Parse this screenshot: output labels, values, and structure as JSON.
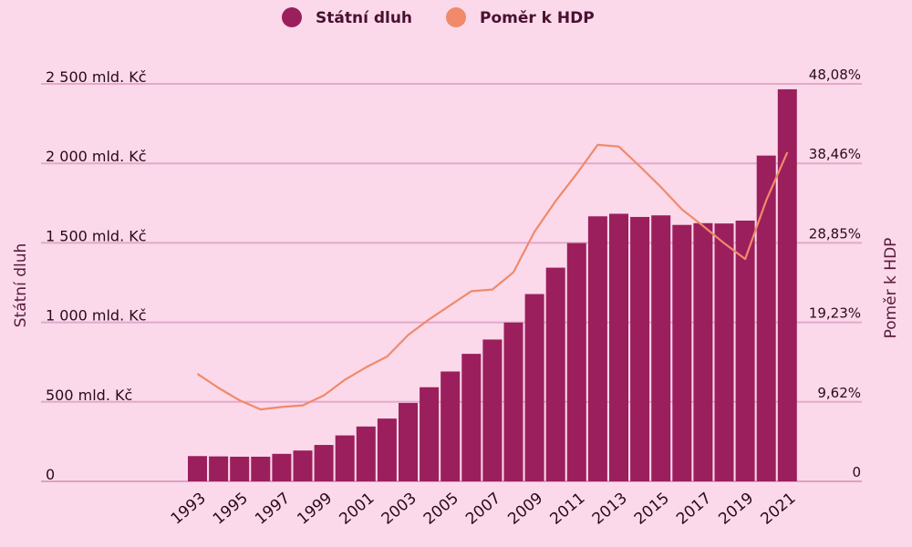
{
  "chart_data": {
    "type": "bar",
    "legend": {
      "placement": "top-center"
    },
    "ylabel": "Státní dluh",
    "y2label": "Poměr k HDP",
    "ylim": [
      0,
      2500
    ],
    "y2lim": [
      0,
      48.08
    ],
    "y_ticks": [
      {
        "value": 0,
        "label": "0"
      },
      {
        "value": 500,
        "label": "500 mld. Kč"
      },
      {
        "value": 1000,
        "label": "1 000 mld. Kč"
      },
      {
        "value": 1500,
        "label": "1 500 mld. Kč"
      },
      {
        "value": 2000,
        "label": "2 000 mld. Kč"
      },
      {
        "value": 2500,
        "label": "2 500 mld. Kč"
      }
    ],
    "y2_ticks": [
      {
        "value": 0,
        "label": "0"
      },
      {
        "value": 9.62,
        "label": "9,62%"
      },
      {
        "value": 19.23,
        "label": "19,23%"
      },
      {
        "value": 28.85,
        "label": "28,85%"
      },
      {
        "value": 38.46,
        "label": "38,46%"
      },
      {
        "value": 48.08,
        "label": "48,08%"
      }
    ],
    "categories": [
      1993,
      1994,
      1995,
      1996,
      1997,
      1998,
      1999,
      2000,
      2001,
      2002,
      2003,
      2004,
      2005,
      2006,
      2007,
      2008,
      2009,
      2010,
      2011,
      2012,
      2013,
      2014,
      2015,
      2016,
      2017,
      2018,
      2019,
      2020,
      2021
    ],
    "x_tick_labels": [
      "1993",
      "1995",
      "1997",
      "1999",
      "2001",
      "2003",
      "2005",
      "2007",
      "2009",
      "2011",
      "2013",
      "2015",
      "2017",
      "2019",
      "2021"
    ],
    "series": [
      {
        "name": "Státní dluh",
        "type": "bar",
        "axis": "left",
        "color": "#9b1f5c",
        "values": [
          159,
          157,
          155,
          155,
          173,
          194,
          229,
          289,
          345,
          395,
          493,
          592,
          691,
          802,
          892,
          999,
          1178,
          1344,
          1499,
          1667,
          1683,
          1663,
          1673,
          1613,
          1624,
          1622,
          1640,
          2049,
          2466
        ]
      },
      {
        "name": "Poměr k HDP",
        "type": "line",
        "axis": "right",
        "color": "#f08a6a",
        "values": [
          13.0,
          11.3,
          9.8,
          8.7,
          9.0,
          9.2,
          10.4,
          12.3,
          13.8,
          15.1,
          17.7,
          19.6,
          21.3,
          23.0,
          23.2,
          25.3,
          30.2,
          33.9,
          37.2,
          40.7,
          40.5,
          38.1,
          35.6,
          32.9,
          30.9,
          28.8,
          26.9,
          34.0,
          39.8
        ]
      }
    ]
  }
}
